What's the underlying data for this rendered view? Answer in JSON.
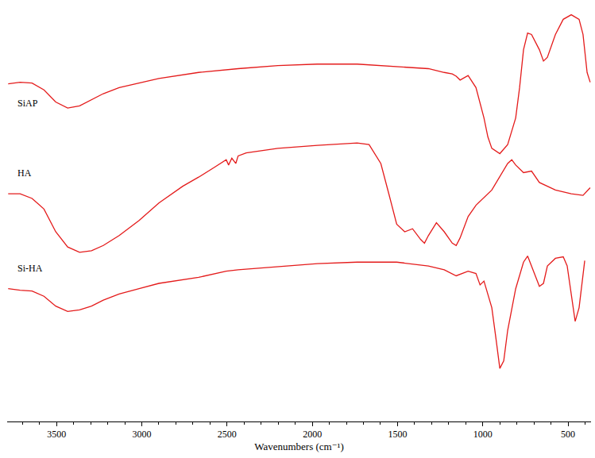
{
  "chart_data": {
    "type": "line",
    "x_label": "Wavenumbers (cm⁻¹)",
    "xlim": [
      3790,
      365
    ],
    "xticks": [
      3500,
      3000,
      2500,
      2000,
      1500,
      1000,
      500
    ],
    "ylim": [
      10,
      555
    ],
    "tick_labels": "x",
    "grid": false,
    "series": [
      {
        "name": "SiAP",
        "color": "#e41b1b",
        "x": [
          3784,
          3714,
          3644,
          3574,
          3505,
          3435,
          3365,
          3295,
          3226,
          3133,
          3016,
          2900,
          2667,
          2435,
          2202,
          1970,
          1737,
          1505,
          1319,
          1226,
          1179,
          1156,
          1133,
          1086,
          1040,
          993,
          970,
          947,
          900,
          854,
          807,
          784,
          761,
          737,
          714,
          668,
          644,
          621,
          574,
          528,
          481,
          435,
          412,
          388,
          370
        ],
        "values": [
          455,
          457,
          456,
          447,
          431,
          423,
          426,
          434,
          442,
          450,
          456,
          462,
          470,
          475,
          479,
          481,
          481,
          478,
          475,
          470,
          468,
          465,
          460,
          466,
          450,
          410,
          385,
          370,
          363,
          375,
          410,
          450,
          500,
          522,
          520,
          500,
          485,
          490,
          520,
          540,
          546,
          540,
          520,
          470,
          457
        ]
      },
      {
        "name": "HA",
        "color": "#e41b1b",
        "x": [
          3784,
          3714,
          3644,
          3574,
          3505,
          3435,
          3365,
          3295,
          3226,
          3133,
          3016,
          2900,
          2760,
          2667,
          2574,
          2505,
          2491,
          2472,
          2449,
          2435,
          2388,
          2202,
          1970,
          1737,
          1667,
          1598,
          1551,
          1505,
          1458,
          1412,
          1365,
          1342,
          1319,
          1272,
          1226,
          1179,
          1156,
          1133,
          1086,
          1040,
          947,
          854,
          830,
          807,
          761,
          714,
          668,
          574,
          481,
          412,
          370
        ],
        "values": [
          310,
          310,
          304,
          290,
          260,
          240,
          233,
          235,
          242,
          255,
          275,
          298,
          320,
          332,
          345,
          355,
          348,
          357,
          350,
          360,
          364,
          370,
          374,
          377,
          375,
          350,
          310,
          270,
          260,
          264,
          250,
          245,
          255,
          272,
          260,
          245,
          242,
          252,
          280,
          295,
          315,
          350,
          355,
          348,
          338,
          340,
          325,
          315,
          310,
          308,
          318
        ]
      },
      {
        "name": "Si-HA",
        "color": "#e41b1b",
        "x": [
          3784,
          3714,
          3644,
          3574,
          3505,
          3435,
          3365,
          3295,
          3226,
          3133,
          3016,
          2900,
          2667,
          2505,
          2435,
          2202,
          1970,
          1737,
          1505,
          1319,
          1226,
          1156,
          1086,
          1040,
          1016,
          993,
          947,
          923,
          900,
          877,
          854,
          807,
          761,
          737,
          714,
          668,
          644,
          621,
          574,
          528,
          505,
          481,
          458,
          435,
          402
        ],
        "values": [
          185,
          183,
          182,
          175,
          162,
          155,
          157,
          162,
          170,
          178,
          185,
          192,
          200,
          208,
          210,
          214,
          218,
          220,
          220,
          215,
          210,
          202,
          208,
          205,
          190,
          195,
          160,
          120,
          80,
          90,
          130,
          185,
          220,
          228,
          215,
          188,
          192,
          215,
          225,
          227,
          215,
          180,
          142,
          160,
          222
        ]
      }
    ]
  }
}
